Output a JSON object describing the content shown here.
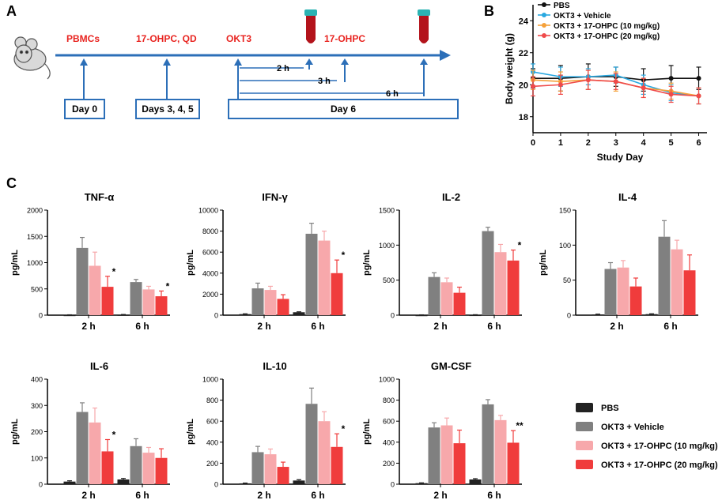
{
  "colors": {
    "pbs": "#222222",
    "vehicle": "#808080",
    "low": "#f7a8ab",
    "high": "#f03c3c",
    "timeline": "#2c6fb8",
    "red_text": "#e8231f",
    "line_pbs": "#111111",
    "line_vehicle": "#29a8e0",
    "line_low": "#f5a13a",
    "line_high": "#ef4a4a"
  },
  "panel_labels": {
    "a": "A",
    "b": "B",
    "c": "C"
  },
  "timeline": {
    "events": [
      "PBMCs",
      "17-OHPC, QD",
      "OKT3",
      "17-OHPC"
    ],
    "days": [
      "Day 0",
      "Days 3, 4, 5",
      "Day 6"
    ],
    "intervals": [
      "2 h",
      "3 h",
      "6 h"
    ],
    "icons": [
      "mouse-icon",
      "blood-tube-icon",
      "blood-tube-icon"
    ]
  },
  "chart_data": [
    {
      "id": "body_weight",
      "type": "line",
      "title": "",
      "xlabel": "Study Day",
      "ylabel": "Body weight (g)",
      "x": [
        0,
        1,
        2,
        3,
        4,
        5,
        6
      ],
      "xticks": [
        "0",
        "1",
        "2",
        "3",
        "4",
        "5",
        "6"
      ],
      "yticks": [
        "18",
        "20",
        "22",
        "24"
      ],
      "ylim": [
        17,
        25
      ],
      "xlim": [
        0,
        6.3
      ],
      "legend": "top-left",
      "series": [
        {
          "name": "PBS",
          "color_key": "line_pbs",
          "values": [
            20.4,
            20.4,
            20.5,
            20.5,
            20.3,
            20.4,
            20.4
          ],
          "err": [
            0.6,
            0.8,
            0.8,
            0.6,
            0.7,
            0.8,
            0.7
          ]
        },
        {
          "name": "OKT3 + Vehicle",
          "color_key": "line_vehicle",
          "values": [
            20.8,
            20.5,
            20.5,
            20.6,
            20.0,
            19.5,
            19.3
          ],
          "err": [
            0.5,
            0.6,
            0.5,
            0.5,
            0.6,
            0.5,
            0.5
          ]
        },
        {
          "name": "OKT3 + 17-OHPC (10 mg/kg)",
          "color_key": "line_low",
          "values": [
            20.3,
            20.2,
            20.3,
            20.2,
            19.8,
            19.6,
            19.3
          ],
          "err": [
            0.6,
            0.6,
            0.6,
            0.6,
            0.6,
            0.5,
            0.5
          ]
        },
        {
          "name": "OKT3 + 17-OHPC (20 mg/kg)",
          "color_key": "line_high",
          "values": [
            19.9,
            20.0,
            20.3,
            20.2,
            19.8,
            19.4,
            19.3
          ],
          "err": [
            0.6,
            0.6,
            0.6,
            0.5,
            0.6,
            0.5,
            0.5
          ]
        }
      ]
    },
    {
      "id": "tnf",
      "type": "bar",
      "title": "TNF-α",
      "ylabel": "pg/mL",
      "xlabel": "",
      "categories": [
        "2 h",
        "6 h"
      ],
      "ylim": [
        0,
        2000
      ],
      "yticks": [
        "0",
        "500",
        "1000",
        "1500",
        "2000"
      ],
      "series": [
        {
          "name": "PBS",
          "values": [
            5,
            10
          ],
          "err": [
            2,
            3
          ]
        },
        {
          "name": "OKT3 + Vehicle",
          "values": [
            1280,
            630
          ],
          "err": [
            200,
            50
          ]
        },
        {
          "name": "OKT3 + 17-OHPC (10 mg/kg)",
          "values": [
            940,
            490
          ],
          "err": [
            260,
            60
          ]
        },
        {
          "name": "OKT3 + 17-OHPC (20 mg/kg)",
          "values": [
            540,
            360
          ],
          "err": [
            200,
            100
          ]
        }
      ],
      "annotations": [
        "",
        "*",
        "",
        "*"
      ]
    },
    {
      "id": "ifn",
      "type": "bar",
      "title": "IFN-γ",
      "ylabel": "pg/mL",
      "xlabel": "",
      "categories": [
        "2 h",
        "6 h"
      ],
      "ylim": [
        0,
        10000
      ],
      "yticks": [
        "0",
        "2000",
        "4000",
        "6000",
        "8000",
        "10000"
      ],
      "series": [
        {
          "name": "PBS",
          "values": [
            100,
            280
          ],
          "err": [
            30,
            40
          ]
        },
        {
          "name": "OKT3 + Vehicle",
          "values": [
            2550,
            7750
          ],
          "err": [
            500,
            1000
          ]
        },
        {
          "name": "OKT3 + 17-OHPC (10 mg/kg)",
          "values": [
            2400,
            7100
          ],
          "err": [
            350,
            900
          ]
        },
        {
          "name": "OKT3 + 17-OHPC (20 mg/kg)",
          "values": [
            1550,
            4000
          ],
          "err": [
            400,
            1250
          ]
        }
      ],
      "annotations": [
        "",
        "",
        "",
        "*"
      ]
    },
    {
      "id": "il2",
      "type": "bar",
      "title": "IL-2",
      "ylabel": "pg/mL",
      "xlabel": "",
      "categories": [
        "2 h",
        "6 h"
      ],
      "ylim": [
        0,
        1500
      ],
      "yticks": [
        "0",
        "500",
        "1000",
        "1500"
      ],
      "series": [
        {
          "name": "PBS",
          "values": [
            3,
            5
          ],
          "err": [
            2,
            2
          ]
        },
        {
          "name": "OKT3 + Vehicle",
          "values": [
            545,
            1200
          ],
          "err": [
            60,
            55
          ]
        },
        {
          "name": "OKT3 + 17-OHPC (10 mg/kg)",
          "values": [
            470,
            900
          ],
          "err": [
            60,
            110
          ]
        },
        {
          "name": "OKT3 + 17-OHPC (20 mg/kg)",
          "values": [
            320,
            780
          ],
          "err": [
            80,
            150
          ]
        }
      ],
      "annotations": [
        "",
        "",
        "",
        "*"
      ]
    },
    {
      "id": "il4",
      "type": "bar",
      "title": "IL-4",
      "ylabel": "pg/mL",
      "xlabel": "",
      "categories": [
        "2 h",
        "6 h"
      ],
      "ylim": [
        0,
        150
      ],
      "yticks": [
        "0",
        "50",
        "100",
        "150"
      ],
      "series": [
        {
          "name": "PBS",
          "values": [
            1,
            1.5
          ],
          "err": [
            0.5,
            0.5
          ]
        },
        {
          "name": "OKT3 + Vehicle",
          "values": [
            66,
            112
          ],
          "err": [
            9,
            23
          ]
        },
        {
          "name": "OKT3 + 17-OHPC (10 mg/kg)",
          "values": [
            68,
            94
          ],
          "err": [
            10,
            13
          ]
        },
        {
          "name": "OKT3 + 17-OHPC (20 mg/kg)",
          "values": [
            41,
            64
          ],
          "err": [
            12,
            22
          ]
        }
      ],
      "annotations": [
        "",
        "",
        "",
        ""
      ]
    },
    {
      "id": "il6",
      "type": "bar",
      "title": "IL-6",
      "ylabel": "pg/mL",
      "xlabel": "",
      "categories": [
        "2 h",
        "6 h"
      ],
      "ylim": [
        0,
        400
      ],
      "yticks": [
        "0",
        "100",
        "200",
        "300",
        "400"
      ],
      "series": [
        {
          "name": "PBS",
          "values": [
            10,
            18
          ],
          "err": [
            3,
            4
          ]
        },
        {
          "name": "OKT3 + Vehicle",
          "values": [
            275,
            145
          ],
          "err": [
            35,
            28
          ]
        },
        {
          "name": "OKT3 + 17-OHPC (10 mg/kg)",
          "values": [
            235,
            120
          ],
          "err": [
            55,
            20
          ]
        },
        {
          "name": "OKT3 + 17-OHPC (20 mg/kg)",
          "values": [
            125,
            100
          ],
          "err": [
            45,
            35
          ]
        }
      ],
      "annotations": [
        "",
        "*",
        "",
        ""
      ]
    },
    {
      "id": "il10",
      "type": "bar",
      "title": "IL-10",
      "ylabel": "pg/mL",
      "xlabel": "",
      "categories": [
        "2 h",
        "6 h"
      ],
      "ylim": [
        0,
        1000
      ],
      "yticks": [
        "0",
        "200",
        "400",
        "600",
        "800",
        "1000"
      ],
      "series": [
        {
          "name": "PBS",
          "values": [
            8,
            35
          ],
          "err": [
            3,
            8
          ]
        },
        {
          "name": "OKT3 + Vehicle",
          "values": [
            305,
            765
          ],
          "err": [
            55,
            150
          ]
        },
        {
          "name": "OKT3 + 17-OHPC (10 mg/kg)",
          "values": [
            285,
            600
          ],
          "err": [
            50,
            90
          ]
        },
        {
          "name": "OKT3 + 17-OHPC (20 mg/kg)",
          "values": [
            165,
            355
          ],
          "err": [
            45,
            125
          ]
        }
      ],
      "annotations": [
        "",
        "",
        "",
        "*"
      ]
    },
    {
      "id": "gmcsf",
      "type": "bar",
      "title": "GM-CSF",
      "ylabel": "pg/mL",
      "xlabel": "",
      "categories": [
        "2 h",
        "6 h"
      ],
      "ylim": [
        0,
        1000
      ],
      "yticks": [
        "0",
        "200",
        "400",
        "600",
        "800",
        "1000"
      ],
      "series": [
        {
          "name": "PBS",
          "values": [
            10,
            45
          ],
          "err": [
            3,
            8
          ]
        },
        {
          "name": "OKT3 + Vehicle",
          "values": [
            540,
            760
          ],
          "err": [
            45,
            45
          ]
        },
        {
          "name": "OKT3 + 17-OHPC (10 mg/kg)",
          "values": [
            560,
            610
          ],
          "err": [
            70,
            45
          ]
        },
        {
          "name": "OKT3 + 17-OHPC (20 mg/kg)",
          "values": [
            390,
            395
          ],
          "err": [
            125,
            115
          ]
        }
      ],
      "annotations": [
        "",
        "",
        "",
        "**"
      ]
    }
  ],
  "legend_c": [
    "PBS",
    "OKT3 + Vehicle",
    "OKT3 + 17-OHPC (10 mg/kg)",
    "OKT3 + 17-OHPC (20 mg/kg)"
  ]
}
